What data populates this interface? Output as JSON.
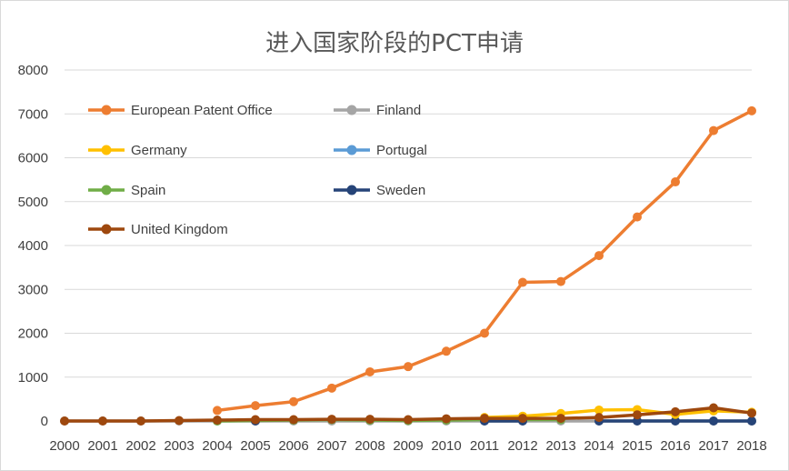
{
  "chart_data": {
    "type": "line",
    "title": "进入国家阶段的PCT申请",
    "xlabel": "",
    "ylabel": "",
    "categories": [
      "2000",
      "2001",
      "2002",
      "2003",
      "2004",
      "2005",
      "2006",
      "2007",
      "2008",
      "2009",
      "2010",
      "2011",
      "2012",
      "2013",
      "2014",
      "2015",
      "2016",
      "2017",
      "2018"
    ],
    "ylim": [
      0,
      8000
    ],
    "yticks": [
      "0",
      "1000",
      "2000",
      "3000",
      "4000",
      "5000",
      "6000",
      "7000",
      "8000"
    ],
    "grid": true,
    "legend_position": "top-left",
    "series": [
      {
        "name": "European Patent Office",
        "color": "#ED7D31",
        "values": [
          null,
          null,
          null,
          null,
          240,
          350,
          440,
          750,
          1120,
          1240,
          1590,
          2000,
          3160,
          3180,
          3770,
          4650,
          5450,
          6620,
          7070
        ]
      },
      {
        "name": "Finland",
        "color": "#A5A5A5",
        "values": [
          0,
          0,
          0,
          0,
          0,
          0,
          0,
          0,
          0,
          0,
          0,
          0,
          0,
          0,
          0,
          0,
          0,
          0,
          0
        ]
      },
      {
        "name": "Germany",
        "color": "#FFC000",
        "values": [
          null,
          null,
          null,
          null,
          null,
          null,
          null,
          null,
          null,
          null,
          null,
          80,
          110,
          170,
          250,
          260,
          150,
          230,
          200
        ]
      },
      {
        "name": "Portugal",
        "color": "#5B9BD5",
        "values": [
          null,
          null,
          null,
          null,
          null,
          null,
          null,
          null,
          null,
          null,
          null,
          null,
          null,
          null,
          null,
          null,
          null,
          null,
          null
        ]
      },
      {
        "name": "Spain",
        "color": "#70AD47",
        "values": [
          null,
          null,
          null,
          null,
          0,
          10,
          20,
          30,
          20,
          10,
          20,
          30,
          30,
          30,
          null,
          null,
          null,
          null,
          null
        ]
      },
      {
        "name": "Sweden",
        "color": "#264478",
        "values": [
          null,
          null,
          null,
          null,
          null,
          0,
          null,
          null,
          null,
          null,
          null,
          0,
          0,
          null,
          0,
          0,
          0,
          0,
          0
        ]
      },
      {
        "name": "United Kingdom",
        "color": "#9E480E",
        "values": [
          0,
          0,
          0,
          10,
          20,
          30,
          30,
          40,
          40,
          30,
          50,
          60,
          60,
          60,
          80,
          140,
          210,
          300,
          180
        ]
      }
    ]
  }
}
